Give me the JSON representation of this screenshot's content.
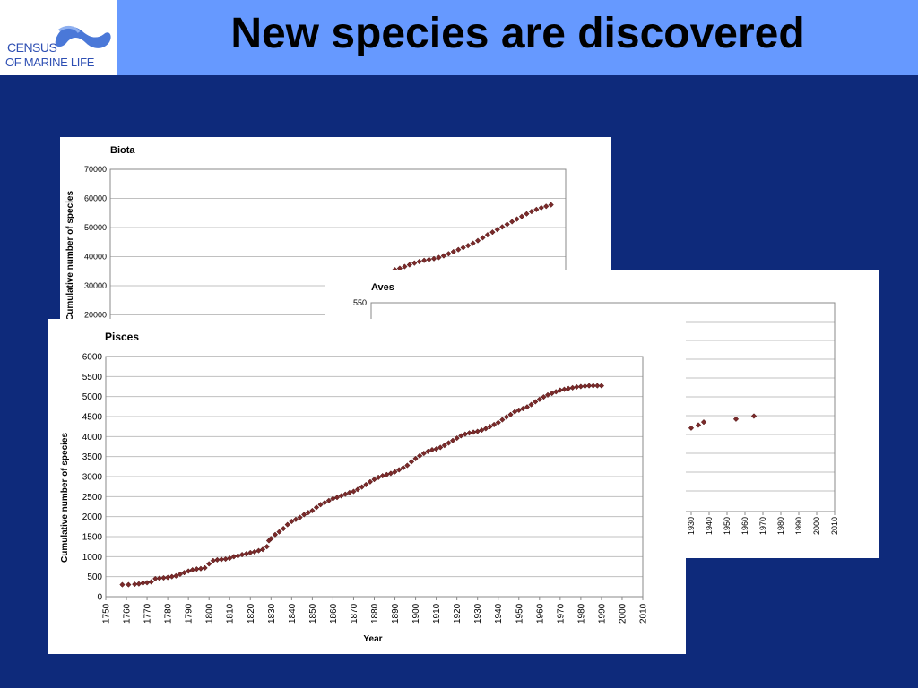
{
  "slide": {
    "title": "New species are discovered",
    "logo_line1": "CENSUS",
    "logo_line2": "OF MARINE LIFE"
  },
  "colors": {
    "header": "#6699ff",
    "background": "#0e2a7b",
    "marker_fill": "#7a2a2a",
    "grid": "#c0c0c0"
  },
  "chart_data": [
    {
      "type": "scatter",
      "title": "Biota",
      "ylabel": "Cumulative number of species",
      "xlabel": "",
      "ylim": [
        20000,
        70000
      ],
      "yticks": [
        "70000",
        "60000",
        "50000",
        "40000",
        "30000",
        "20000"
      ],
      "grid": true,
      "points": [
        [
          1925,
          35500
        ],
        [
          1928,
          36000
        ],
        [
          1931,
          36600
        ],
        [
          1934,
          37200
        ],
        [
          1937,
          37800
        ],
        [
          1940,
          38300
        ],
        [
          1943,
          38700
        ],
        [
          1946,
          39000
        ],
        [
          1949,
          39300
        ],
        [
          1952,
          39700
        ],
        [
          1955,
          40300
        ],
        [
          1958,
          41000
        ],
        [
          1961,
          41700
        ],
        [
          1964,
          42400
        ],
        [
          1967,
          43100
        ],
        [
          1970,
          43800
        ],
        [
          1973,
          44600
        ],
        [
          1976,
          45500
        ],
        [
          1979,
          46500
        ],
        [
          1982,
          47500
        ],
        [
          1985,
          48400
        ],
        [
          1988,
          49300
        ],
        [
          1991,
          50200
        ],
        [
          1994,
          51100
        ],
        [
          1997,
          52000
        ],
        [
          2000,
          52900
        ],
        [
          2003,
          53800
        ],
        [
          2006,
          54700
        ],
        [
          2009,
          55500
        ],
        [
          2012,
          56200
        ],
        [
          2015,
          56800
        ],
        [
          2018,
          57300
        ],
        [
          2021,
          57800
        ]
      ]
    },
    {
      "type": "scatter",
      "title": "Aves",
      "xlabel": "",
      "ylabel": "",
      "ylim_top_tick": "550",
      "xticks": [
        "1930",
        "1940",
        "1950",
        "1960",
        "1970",
        "1980",
        "1990",
        "2000",
        "2010"
      ],
      "grid": true,
      "points": [
        [
          1930,
          508
        ],
        [
          1934,
          509
        ],
        [
          1937,
          510
        ],
        [
          1955,
          511
        ],
        [
          1965,
          512
        ]
      ]
    },
    {
      "type": "scatter",
      "title": "Pisces",
      "xlabel": "Year",
      "ylabel": "Cumulative number of species",
      "xlim": [
        1750,
        2010
      ],
      "ylim": [
        0,
        6000
      ],
      "yticks": [
        "6000",
        "5500",
        "5000",
        "4500",
        "4000",
        "3500",
        "3000",
        "2500",
        "2000",
        "1500",
        "1000",
        "500",
        "0"
      ],
      "xticks": [
        "1750",
        "1760",
        "1770",
        "1780",
        "1790",
        "1800",
        "1810",
        "1820",
        "1830",
        "1840",
        "1850",
        "1860",
        "1870",
        "1880",
        "1890",
        "1900",
        "1910",
        "1920",
        "1930",
        "1940",
        "1950",
        "1960",
        "1970",
        "1980",
        "1990",
        "2000",
        "2010"
      ],
      "grid": true,
      "points": [
        [
          1758,
          300
        ],
        [
          1761,
          300
        ],
        [
          1764,
          310
        ],
        [
          1766,
          320
        ],
        [
          1768,
          340
        ],
        [
          1770,
          350
        ],
        [
          1772,
          370
        ],
        [
          1774,
          450
        ],
        [
          1776,
          460
        ],
        [
          1778,
          470
        ],
        [
          1780,
          480
        ],
        [
          1782,
          500
        ],
        [
          1784,
          520
        ],
        [
          1786,
          560
        ],
        [
          1788,
          600
        ],
        [
          1790,
          640
        ],
        [
          1792,
          670
        ],
        [
          1794,
          690
        ],
        [
          1796,
          700
        ],
        [
          1798,
          720
        ],
        [
          1800,
          820
        ],
        [
          1802,
          900
        ],
        [
          1804,
          920
        ],
        [
          1806,
          930
        ],
        [
          1808,
          940
        ],
        [
          1810,
          960
        ],
        [
          1812,
          1000
        ],
        [
          1814,
          1020
        ],
        [
          1816,
          1050
        ],
        [
          1818,
          1070
        ],
        [
          1820,
          1100
        ],
        [
          1822,
          1120
        ],
        [
          1824,
          1150
        ],
        [
          1826,
          1180
        ],
        [
          1828,
          1250
        ],
        [
          1829,
          1400
        ],
        [
          1830,
          1450
        ],
        [
          1832,
          1550
        ],
        [
          1834,
          1620
        ],
        [
          1836,
          1700
        ],
        [
          1838,
          1800
        ],
        [
          1840,
          1880
        ],
        [
          1842,
          1930
        ],
        [
          1844,
          1980
        ],
        [
          1846,
          2050
        ],
        [
          1848,
          2100
        ],
        [
          1850,
          2150
        ],
        [
          1852,
          2230
        ],
        [
          1854,
          2300
        ],
        [
          1856,
          2350
        ],
        [
          1858,
          2400
        ],
        [
          1860,
          2450
        ],
        [
          1862,
          2480
        ],
        [
          1864,
          2520
        ],
        [
          1866,
          2560
        ],
        [
          1868,
          2600
        ],
        [
          1870,
          2630
        ],
        [
          1872,
          2680
        ],
        [
          1874,
          2740
        ],
        [
          1876,
          2800
        ],
        [
          1878,
          2870
        ],
        [
          1880,
          2930
        ],
        [
          1882,
          2980
        ],
        [
          1884,
          3020
        ],
        [
          1886,
          3050
        ],
        [
          1888,
          3080
        ],
        [
          1890,
          3120
        ],
        [
          1892,
          3170
        ],
        [
          1894,
          3220
        ],
        [
          1896,
          3280
        ],
        [
          1898,
          3370
        ],
        [
          1900,
          3450
        ],
        [
          1902,
          3520
        ],
        [
          1904,
          3580
        ],
        [
          1906,
          3630
        ],
        [
          1908,
          3670
        ],
        [
          1910,
          3690
        ],
        [
          1912,
          3730
        ],
        [
          1914,
          3780
        ],
        [
          1916,
          3840
        ],
        [
          1918,
          3900
        ],
        [
          1920,
          3960
        ],
        [
          1922,
          4020
        ],
        [
          1924,
          4060
        ],
        [
          1926,
          4090
        ],
        [
          1928,
          4110
        ],
        [
          1930,
          4130
        ],
        [
          1932,
          4160
        ],
        [
          1934,
          4200
        ],
        [
          1936,
          4250
        ],
        [
          1938,
          4300
        ],
        [
          1940,
          4350
        ],
        [
          1942,
          4420
        ],
        [
          1944,
          4490
        ],
        [
          1946,
          4550
        ],
        [
          1948,
          4620
        ],
        [
          1950,
          4660
        ],
        [
          1952,
          4700
        ],
        [
          1954,
          4740
        ],
        [
          1956,
          4800
        ],
        [
          1958,
          4870
        ],
        [
          1960,
          4930
        ],
        [
          1962,
          4990
        ],
        [
          1964,
          5040
        ],
        [
          1966,
          5080
        ],
        [
          1968,
          5120
        ],
        [
          1970,
          5160
        ],
        [
          1972,
          5180
        ],
        [
          1974,
          5200
        ],
        [
          1976,
          5220
        ],
        [
          1978,
          5240
        ],
        [
          1980,
          5250
        ],
        [
          1982,
          5260
        ],
        [
          1984,
          5270
        ],
        [
          1986,
          5270
        ],
        [
          1988,
          5270
        ],
        [
          1990,
          5270
        ]
      ]
    }
  ]
}
